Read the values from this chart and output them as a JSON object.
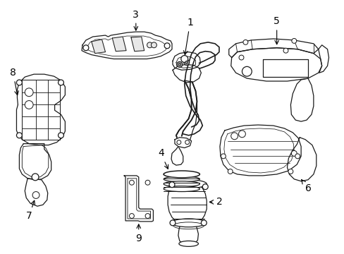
{
  "background_color": "#ffffff",
  "line_color": "#1a1a1a",
  "line_width": 0.9,
  "figsize": [
    4.89,
    3.6
  ],
  "dpi": 100
}
